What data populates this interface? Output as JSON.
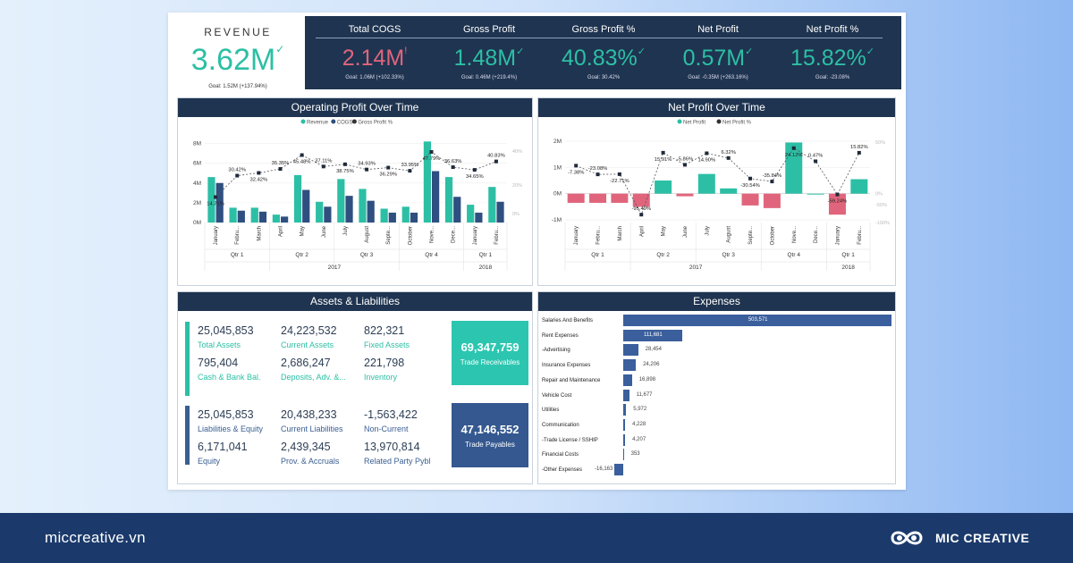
{
  "revenue": {
    "title": "REVENUE",
    "value": "3.62M",
    "mark": "✓",
    "goal": "Goal: 1.52M (+137.94%)"
  },
  "kpis": [
    {
      "label": "Total COGS",
      "value": "2.14M",
      "mark": "!",
      "goal": "Goal: 1.06M (+102.33%)",
      "negative": true
    },
    {
      "label": "Gross Profit",
      "value": "1.48M",
      "mark": "✓",
      "goal": "Goal: 0.46M (+219.4%)",
      "negative": false
    },
    {
      "label": "Gross Profit %",
      "value": "40.83%",
      "mark": "✓",
      "goal": "Goal: 30.42%",
      "negative": false
    },
    {
      "label": "Net Profit",
      "value": "0.57M",
      "mark": "✓",
      "goal": "Goal: -0.35M (+263.16%)",
      "negative": false
    },
    {
      "label": "Net Profit %",
      "value": "15.82%",
      "mark": "✓",
      "goal": "Goal: -23.08%",
      "negative": false
    }
  ],
  "colors": {
    "teal": "#2cbfa5",
    "navy": "#2f4f80",
    "header": "#1f3450",
    "red": "#e0657c",
    "expense_bar": "#3a5f9c"
  },
  "chart_data": [
    {
      "type": "bar",
      "title": "Operating Profit Over Time",
      "legend": [
        "Revenue",
        "COGS",
        "Gross Profit %"
      ],
      "legend_position": "top-center",
      "categories": [
        "January",
        "Febru...",
        "March",
        "April",
        "May",
        "June",
        "July",
        "August",
        "Septe...",
        "October",
        "Nove...",
        "Dece...",
        "January",
        "Febru..."
      ],
      "quarters": [
        "Qtr 1",
        "Qtr 2",
        "Qtr 3",
        "Qtr 4",
        "Qtr 1"
      ],
      "years": [
        "2017",
        "2018"
      ],
      "y_ticks": [
        "8M",
        "6M",
        "4M",
        "2M",
        "0M"
      ],
      "y2_ticks": [
        "40%",
        "20%",
        "0%"
      ],
      "ylim": [
        0,
        8.5
      ],
      "series": [
        {
          "name": "Revenue",
          "values": [
            4.6,
            1.5,
            1.5,
            0.8,
            4.8,
            2.1,
            4.4,
            3.4,
            1.4,
            1.6,
            8.2,
            4.6,
            1.8,
            3.6
          ]
        },
        {
          "name": "COGS",
          "values": [
            4.0,
            1.2,
            1.1,
            0.6,
            3.3,
            1.6,
            2.7,
            2.2,
            1.0,
            1.0,
            5.2,
            2.6,
            1.0,
            2.1
          ]
        },
        {
          "name": "Gross Profit %",
          "values": [
            14.71,
            30.42,
            32.42,
            35.35,
            45.48,
            37.11,
            38.75,
            34.93,
            36.29,
            33.95,
            47.79,
            36.63,
            34.65,
            40.83
          ]
        }
      ],
      "point_labels": [
        "14.71%",
        "30.42%",
        "32.42%",
        "35.35%",
        "45.48%",
        "37.11%",
        "38.75%",
        "34.93%",
        "36.29%",
        "33.95%",
        "47.79%",
        "36.63%",
        "34.65%",
        "40.83%"
      ]
    },
    {
      "type": "bar",
      "title": "Net Profit Over Time",
      "legend": [
        "Net Profit",
        "Net Profit %"
      ],
      "legend_position": "top-center",
      "categories": [
        "January",
        "Febru...",
        "March",
        "April",
        "May",
        "June",
        "July",
        "August",
        "Septe...",
        "October",
        "Nove...",
        "Dece...",
        "January",
        "Febru..."
      ],
      "quarters": [
        "Qtr 1",
        "Qtr 2",
        "Qtr 3",
        "Qtr 4",
        "Qtr 1"
      ],
      "years": [
        "2017",
        "2018"
      ],
      "y_ticks": [
        "2M",
        "1M",
        "0M",
        "-1M"
      ],
      "y2_ticks": [
        "50%",
        "0%",
        "-50%",
        "-100%"
      ],
      "ylim": [
        -1.1,
        2.1
      ],
      "series": [
        {
          "name": "Net Profit",
          "values": [
            -0.35,
            -0.35,
            -0.35,
            -0.5,
            0.5,
            -0.1,
            0.75,
            0.2,
            -0.45,
            -0.55,
            1.95,
            0.0,
            -0.8,
            0.55
          ]
        },
        {
          "name": "Net Profit %",
          "values": [
            -7.38,
            -23.08,
            -22.71,
            -95.49,
            15.91,
            -5.86,
            14.9,
            6.32,
            -30.54,
            -35.84,
            24.12,
            0.47,
            -59.24,
            15.82
          ]
        }
      ],
      "point_labels": [
        "-7.38%",
        "-23.08%",
        "-22.71%",
        "-95.49%",
        "15.91%",
        "-5.86%",
        "14.90%",
        "6.32%",
        "-30.54%",
        "-35.84%",
        "24.12%",
        "0.47%",
        "-59.24%",
        "15.82%"
      ]
    }
  ],
  "assets": {
    "title": "Assets & Liabilities",
    "assets_group": [
      {
        "value": "25,045,853",
        "label": "Total Assets"
      },
      {
        "value": "24,223,532",
        "label": "Current Assets"
      },
      {
        "value": "822,321",
        "label": "Fixed Assets"
      },
      {
        "value": "795,404",
        "label": "Cash & Bank Bal."
      },
      {
        "value": "2,686,247",
        "label": "Deposits, Adv. &..."
      },
      {
        "value": "221,798",
        "label": "Inventory"
      }
    ],
    "liab_group": [
      {
        "value": "25,045,853",
        "label": "Liabilities & Equity"
      },
      {
        "value": "20,438,233",
        "label": "Current Liabilities"
      },
      {
        "value": "-1,563,422",
        "label": "Non-Current"
      },
      {
        "value": "6,171,041",
        "label": "Equity"
      },
      {
        "value": "2,439,345",
        "label": "Prov. & Accruals"
      },
      {
        "value": "13,970,814",
        "label": "Related Party Pybl"
      }
    ],
    "receivables": {
      "value": "69,347,759",
      "label": "Trade Receivables"
    },
    "payables": {
      "value": "47,146,552",
      "label": "Trade Payables"
    }
  },
  "expenses": {
    "title": "Expenses",
    "max": 503571,
    "rows": [
      {
        "label": "Salaries And Benefits",
        "value": 503571,
        "text": "503,571"
      },
      {
        "label": "Rent Expenses",
        "value": 111681,
        "text": "111,681"
      },
      {
        "label": "-Advertising",
        "value": 28454,
        "text": "28,454"
      },
      {
        "label": "Insurance Expenses",
        "value": 24206,
        "text": "24,206"
      },
      {
        "label": "Repair and Maintenance",
        "value": 16898,
        "text": "16,898"
      },
      {
        "label": "Vehicle Cost",
        "value": 11677,
        "text": "11,677"
      },
      {
        "label": "Utilities",
        "value": 5972,
        "text": "5,972"
      },
      {
        "label": "Communication",
        "value": 4228,
        "text": "4,228"
      },
      {
        "label": "-Trade License / SSHIP",
        "value": 4207,
        "text": "4,207"
      },
      {
        "label": "Financial Costs",
        "value": 353,
        "text": "353"
      },
      {
        "label": "-Other Expenses",
        "value": -16163,
        "text": "-16,163"
      }
    ]
  },
  "footer": {
    "url": "miccreative.vn",
    "brand": "MIC CREATIVE"
  }
}
